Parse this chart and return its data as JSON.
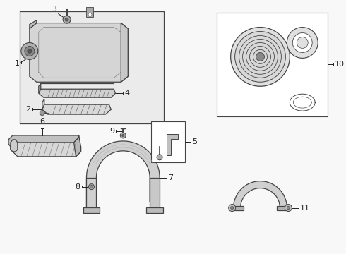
{
  "bg_color": "#f8f8f8",
  "line_color": "#444444",
  "label_color": "#222222",
  "box_color": "#e8e8e8",
  "white": "#ffffff",
  "fig_w": 4.9,
  "fig_h": 3.6,
  "dpi": 100
}
